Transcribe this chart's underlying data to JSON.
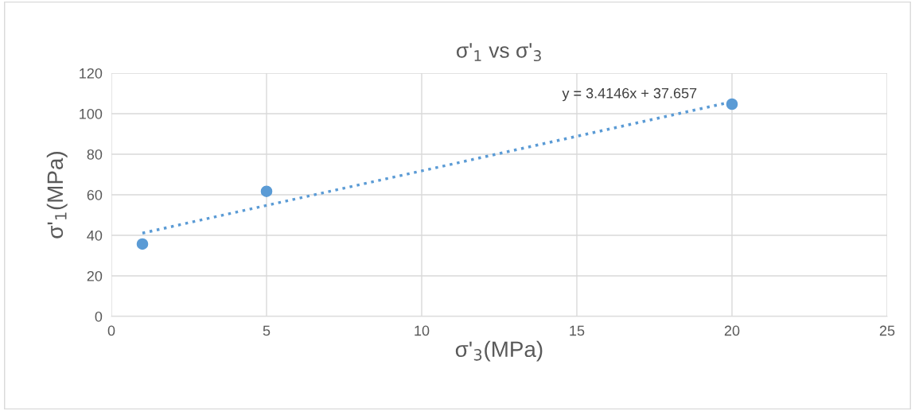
{
  "chart_data": {
    "type": "scatter",
    "title": "σ'$_{1}$ vs σ'$_{3}$",
    "xlabel": "σ'$_{3}$(MPa)",
    "ylabel": "σ'$_{1}$(MPa)",
    "series": [
      {
        "color": "#5b9bd5",
        "x": [
          1,
          5,
          20
        ],
        "values": [
          35.7,
          61.7,
          104.7
        ],
        "marker": "circle"
      },
      {
        "type": "line",
        "color": "#5b9bd5",
        "x": [
          1,
          20
        ],
        "values": [
          41.1,
          105.9
        ],
        "line_style": "dotted",
        "marker": "none"
      }
    ],
    "annotations": [
      "y = 3.4146x + 37.657"
    ],
    "xlim": [
      0,
      25
    ],
    "xticks": [
      0,
      5,
      10,
      15,
      20,
      25
    ],
    "ylim": [
      0,
      120
    ],
    "yticks": [
      0,
      20,
      40,
      60,
      80,
      100,
      120
    ],
    "grid": true,
    "legend": false
  }
}
